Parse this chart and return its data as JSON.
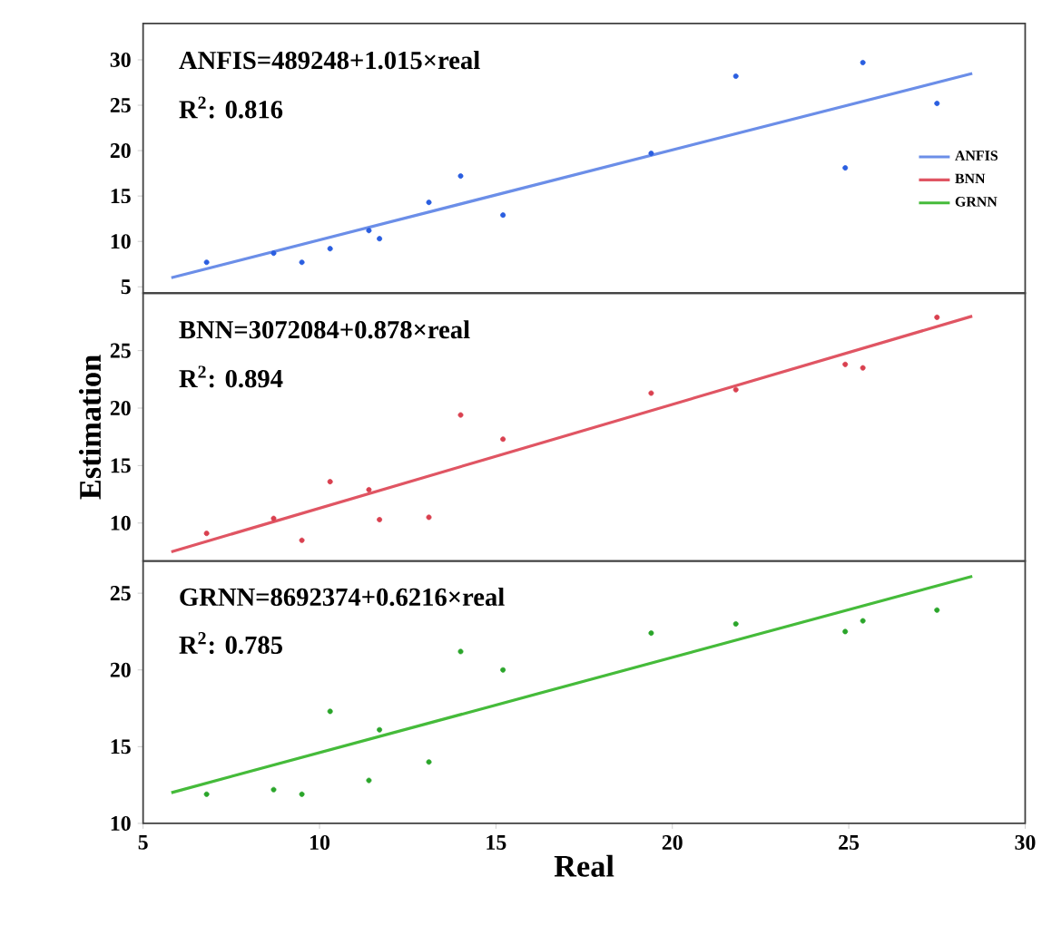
{
  "chart_data": [
    {
      "type": "scatter",
      "xlim": [
        5,
        30
      ],
      "ylim": [
        4.3,
        34
      ],
      "yticks": [
        5,
        10,
        15,
        20,
        25,
        30
      ],
      "tick_labels": "y",
      "line_style": "solid",
      "legend": "right",
      "annotations": [
        "ANFIS=489248+1.015×real",
        "R$^{2}$: 0.816"
      ],
      "series": [
        {
          "marker": "circle",
          "color": "#2a5ee0",
          "x": [
            6.8,
            8.7,
            9.5,
            10.3,
            11.4,
            11.7,
            13.1,
            14.0,
            15.2,
            19.4,
            21.8,
            24.9,
            25.4,
            27.5
          ],
          "values": [
            7.7,
            8.7,
            7.7,
            9.2,
            11.2,
            10.3,
            14.3,
            17.2,
            12.9,
            19.7,
            28.2,
            18.1,
            29.7,
            25.2
          ]
        },
        {
          "type": "line",
          "marker": "none",
          "name": "ANFIS",
          "color": "#6b8ee8",
          "x": [
            5.8,
            28.5
          ],
          "values": [
            6.0,
            28.5
          ]
        }
      ]
    },
    {
      "type": "scatter",
      "xlim": [
        5,
        30
      ],
      "ylim": [
        6.7,
        30
      ],
      "yticks": [
        10,
        15,
        20,
        25
      ],
      "tick_labels": "y",
      "line_style": "solid",
      "ylabel": "Estimation",
      "annotations": [
        "BNN=3072084+0.878×real",
        "R$^{2}$: 0.894"
      ],
      "series": [
        {
          "marker": "circle",
          "color": "#d9404f",
          "x": [
            6.8,
            8.7,
            9.5,
            10.3,
            11.4,
            11.7,
            13.1,
            14.0,
            15.2,
            19.4,
            21.8,
            24.9,
            25.4,
            27.5
          ],
          "values": [
            9.1,
            10.4,
            8.5,
            13.6,
            12.9,
            10.3,
            10.5,
            19.4,
            17.3,
            21.3,
            21.6,
            23.8,
            23.5,
            27.9
          ]
        },
        {
          "type": "line",
          "marker": "none",
          "name": "BNN",
          "color": "#e05563",
          "x": [
            5.8,
            28.5
          ],
          "values": [
            7.5,
            28.0
          ]
        }
      ]
    },
    {
      "type": "scatter",
      "xlim": [
        5,
        30
      ],
      "xticks": [
        5,
        10,
        15,
        20,
        25,
        30
      ],
      "ylim": [
        10,
        27.1
      ],
      "yticks": [
        10,
        15,
        20,
        25
      ],
      "line_style": "solid",
      "xlabel": "Real",
      "annotations": [
        "GRNN=8692374+0.6216×real",
        "R$^{2}$: 0.785"
      ],
      "series": [
        {
          "marker": "circle",
          "color": "#2aa52a",
          "x": [
            6.8,
            8.7,
            9.5,
            10.3,
            11.4,
            11.7,
            13.1,
            14.0,
            15.2,
            19.4,
            21.8,
            24.9,
            25.4,
            27.5
          ],
          "values": [
            11.9,
            12.2,
            11.9,
            17.3,
            12.8,
            16.1,
            14.0,
            21.2,
            20.0,
            22.4,
            23.0,
            22.5,
            23.2,
            23.9
          ]
        },
        {
          "type": "line",
          "marker": "none",
          "name": "GRNN",
          "color": "#45bb3a",
          "x": [
            5.8,
            28.5
          ],
          "values": [
            12.0,
            26.1
          ]
        }
      ]
    }
  ]
}
